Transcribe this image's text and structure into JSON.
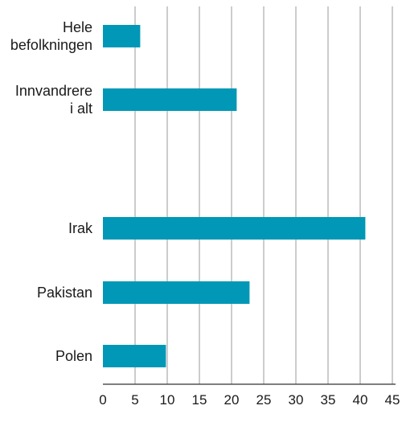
{
  "chart_data": {
    "type": "bar",
    "orientation": "horizontal",
    "categories": [
      {
        "label_lines": [
          "Hele",
          "befolkningen"
        ],
        "value": 5.8,
        "group": 0
      },
      {
        "label_lines": [
          "Innvandrere",
          "i alt"
        ],
        "value": 20.8,
        "group": 0
      },
      {
        "label_lines": [
          "Irak"
        ],
        "value": 40.8,
        "group": 1
      },
      {
        "label_lines": [
          "Pakistan"
        ],
        "value": 22.8,
        "group": 1
      },
      {
        "label_lines": [
          "Polen"
        ],
        "value": 9.8,
        "group": 1
      }
    ],
    "xlim": [
      0,
      45
    ],
    "x_ticks": [
      "0",
      "5",
      "10",
      "15",
      "20",
      "25",
      "30",
      "35",
      "40",
      "45"
    ],
    "grid": "vertical",
    "title": "",
    "xlabel": "",
    "ylabel": "",
    "colors": {
      "bar": "#0098b6",
      "grid": "#9a9a9a",
      "axis": "#333333",
      "text": "#1a1a1a"
    }
  }
}
